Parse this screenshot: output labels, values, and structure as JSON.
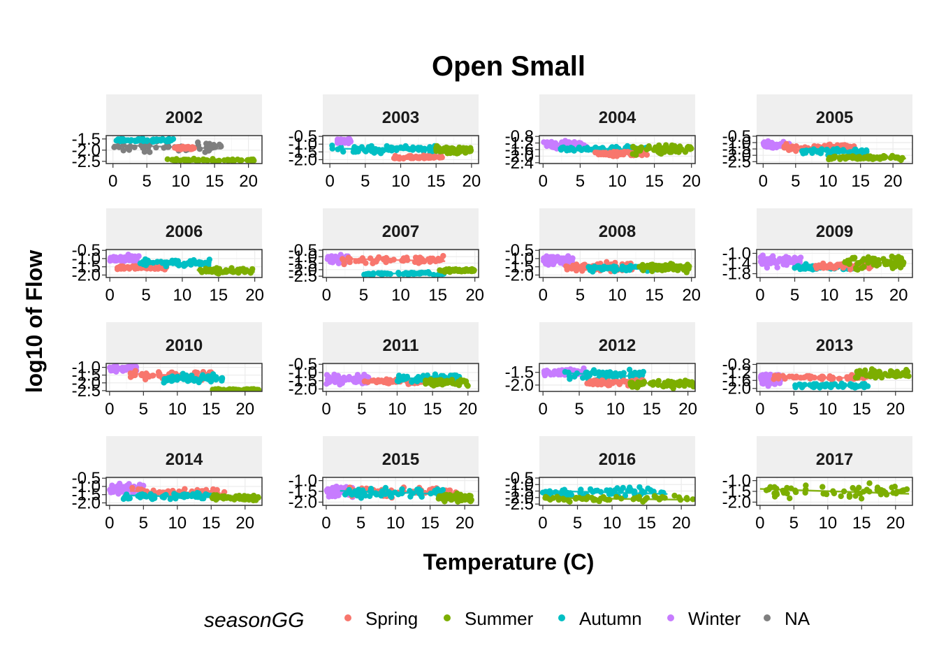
{
  "chart_data": {
    "type": "scatter",
    "title": "Open Small",
    "xlabel": "Temperature (C)",
    "ylabel": "log10 of Flow",
    "grid": true,
    "legend": {
      "title": "seasonGG",
      "placement": "bottom",
      "items": [
        {
          "name": "Spring",
          "color": "#F8766D"
        },
        {
          "name": "Summer",
          "color": "#7CAE00"
        },
        {
          "name": "Autumn",
          "color": "#00BFC4"
        },
        {
          "name": "Winter",
          "color": "#C77CFF"
        },
        {
          "name": "NA",
          "color": "#7F7F7F"
        }
      ]
    },
    "facets": [
      {
        "label": "2002",
        "xlim": [
          -1,
          22
        ],
        "ylim": [
          -2.6,
          -1.35
        ],
        "xticks": [
          0,
          5,
          10,
          15,
          20
        ],
        "yticks": [
          -1.5,
          -2.0,
          -2.5
        ],
        "groups": [
          {
            "season": "NA",
            "x_range": [
              0,
              16
            ],
            "y_center": -1.85,
            "y_spread": 0.35
          },
          {
            "season": "Autumn",
            "x_range": [
              0.5,
              9
            ],
            "y_center": -1.55,
            "y_spread": 0.1
          },
          {
            "season": "Summer",
            "x_range": [
              8,
              21
            ],
            "y_center": -2.45,
            "y_spread": 0.08
          },
          {
            "season": "Spring",
            "x_range": [
              9,
              12
            ],
            "y_center": -1.9,
            "y_spread": 0.1
          }
        ]
      },
      {
        "label": "2003",
        "xlim": [
          -1,
          21
        ],
        "ylim": [
          -2.25,
          -0.45
        ],
        "xticks": [
          0,
          5,
          10,
          15,
          20
        ],
        "yticks": [
          -0.5,
          -1.0,
          -1.5,
          -2.0
        ],
        "groups": [
          {
            "season": "Autumn",
            "x_range": [
              0,
              15
            ],
            "y_center": -1.35,
            "y_spread": 0.3
          },
          {
            "season": "Winter",
            "x_range": [
              1,
              3
            ],
            "y_center": -0.8,
            "y_spread": 0.2
          },
          {
            "season": "Spring",
            "x_range": [
              9,
              16
            ],
            "y_center": -1.85,
            "y_spread": 0.15
          },
          {
            "season": "Summer",
            "x_range": [
              15,
              20
            ],
            "y_center": -1.4,
            "y_spread": 0.3
          }
        ]
      },
      {
        "label": "2004",
        "xlim": [
          -0.5,
          20.5
        ],
        "ylim": [
          -2.45,
          -0.75
        ],
        "xticks": [
          0,
          5,
          10,
          15,
          20
        ],
        "yticks": [
          -0.8,
          -1.2,
          -1.6,
          -2.0,
          -2.4
        ],
        "groups": [
          {
            "season": "Winter",
            "x_range": [
              0,
              6
            ],
            "y_center": -1.3,
            "y_spread": 0.3
          },
          {
            "season": "Autumn",
            "x_range": [
              2,
              14
            ],
            "y_center": -1.55,
            "y_spread": 0.2
          },
          {
            "season": "Spring",
            "x_range": [
              7,
              14
            ],
            "y_center": -1.85,
            "y_spread": 0.2
          },
          {
            "season": "Summer",
            "x_range": [
              12,
              20
            ],
            "y_center": -1.6,
            "y_spread": 0.4
          }
        ]
      },
      {
        "label": "2005",
        "xlim": [
          -1,
          23
        ],
        "ylim": [
          -2.65,
          -0.45
        ],
        "xticks": [
          0,
          5,
          10,
          15,
          20
        ],
        "yticks": [
          -0.5,
          -1.0,
          -1.5,
          -2.0,
          -2.5
        ],
        "groups": [
          {
            "season": "Winter",
            "x_range": [
              0,
              4
            ],
            "y_center": -1.2,
            "y_spread": 0.35
          },
          {
            "season": "Spring",
            "x_range": [
              3,
              14
            ],
            "y_center": -1.4,
            "y_spread": 0.4
          },
          {
            "season": "Autumn",
            "x_range": [
              6,
              16
            ],
            "y_center": -1.7,
            "y_spread": 0.35
          },
          {
            "season": "Summer",
            "x_range": [
              10,
              22
            ],
            "y_center": -2.2,
            "y_spread": 0.2
          }
        ]
      },
      {
        "label": "2006",
        "xlim": [
          -0.5,
          21
        ],
        "ylim": [
          -2.15,
          -0.45
        ],
        "xticks": [
          0,
          5,
          10,
          15,
          20
        ],
        "yticks": [
          -0.5,
          -1.0,
          -1.5,
          -2.0
        ],
        "groups": [
          {
            "season": "Winter",
            "x_range": [
              0,
              4
            ],
            "y_center": -1.0,
            "y_spread": 0.35
          },
          {
            "season": "Spring",
            "x_range": [
              1,
              8
            ],
            "y_center": -1.55,
            "y_spread": 0.15
          },
          {
            "season": "Autumn",
            "x_range": [
              4,
              14
            ],
            "y_center": -1.25,
            "y_spread": 0.3
          },
          {
            "season": "Summer",
            "x_range": [
              12,
              20
            ],
            "y_center": -1.75,
            "y_spread": 0.2
          }
        ]
      },
      {
        "label": "2007",
        "xlim": [
          -0.5,
          20.5
        ],
        "ylim": [
          -2.6,
          -0.45
        ],
        "xticks": [
          0,
          5,
          10,
          15,
          20
        ],
        "yticks": [
          -0.5,
          -1.0,
          -1.5,
          -2.0,
          -2.5
        ],
        "groups": [
          {
            "season": "Winter",
            "x_range": [
              0,
              3
            ],
            "y_center": -1.2,
            "y_spread": 0.4
          },
          {
            "season": "Spring",
            "x_range": [
              2,
              16
            ],
            "y_center": -1.25,
            "y_spread": 0.4
          },
          {
            "season": "Autumn",
            "x_range": [
              5,
              16
            ],
            "y_center": -2.3,
            "y_spread": 0.15
          },
          {
            "season": "Summer",
            "x_range": [
              15,
              20
            ],
            "y_center": -2.05,
            "y_spread": 0.15
          }
        ]
      },
      {
        "label": "2008",
        "xlim": [
          -0.5,
          20.5
        ],
        "ylim": [
          -2.15,
          -0.45
        ],
        "xticks": [
          0,
          5,
          10,
          15,
          20
        ],
        "yticks": [
          -0.5,
          -1.0,
          -1.5,
          -2.0
        ],
        "groups": [
          {
            "season": "Winter",
            "x_range": [
              0,
              4
            ],
            "y_center": -1.1,
            "y_spread": 0.4
          },
          {
            "season": "Spring",
            "x_range": [
              3,
              12
            ],
            "y_center": -1.5,
            "y_spread": 0.35
          },
          {
            "season": "Autumn",
            "x_range": [
              6,
              16
            ],
            "y_center": -1.6,
            "y_spread": 0.25
          },
          {
            "season": "Summer",
            "x_range": [
              13,
              20
            ],
            "y_center": -1.55,
            "y_spread": 0.35
          }
        ]
      },
      {
        "label": "2009",
        "xlim": [
          -0.5,
          22
        ],
        "ylim": [
          -1.95,
          -0.85
        ],
        "xticks": [
          0,
          5,
          10,
          15,
          20
        ],
        "yticks": [
          -1.0,
          -1.4,
          -1.8
        ],
        "groups": [
          {
            "season": "Winter",
            "x_range": [
              0,
              6
            ],
            "y_center": -1.3,
            "y_spread": 0.3
          },
          {
            "season": "Autumn",
            "x_range": [
              5,
              14
            ],
            "y_center": -1.55,
            "y_spread": 0.15
          },
          {
            "season": "Spring",
            "x_range": [
              8,
              16
            ],
            "y_center": -1.5,
            "y_spread": 0.15
          },
          {
            "season": "Summer",
            "x_range": [
              12,
              21
            ],
            "y_center": -1.35,
            "y_spread": 0.35
          }
        ]
      },
      {
        "label": "2010",
        "xlim": [
          -0.5,
          22.5
        ],
        "ylim": [
          -2.55,
          -0.75
        ],
        "xticks": [
          0,
          5,
          10,
          15,
          20
        ],
        "yticks": [
          -1.0,
          -1.5,
          -2.0,
          -2.5
        ],
        "groups": [
          {
            "season": "Winter",
            "x_range": [
              0,
              4
            ],
            "y_center": -1.1,
            "y_spread": 0.3
          },
          {
            "season": "Spring",
            "x_range": [
              3,
              15
            ],
            "y_center": -1.5,
            "y_spread": 0.4
          },
          {
            "season": "Autumn",
            "x_range": [
              8,
              17
            ],
            "y_center": -1.7,
            "y_spread": 0.35
          },
          {
            "season": "Summer",
            "x_range": [
              15,
              22
            ],
            "y_center": -2.45,
            "y_spread": 0.08
          }
        ]
      },
      {
        "label": "2011",
        "xlim": [
          -0.5,
          21.5
        ],
        "ylim": [
          -2.15,
          -0.45
        ],
        "xticks": [
          0,
          5,
          10,
          15,
          20
        ],
        "yticks": [
          -0.5,
          -1.0,
          -1.5,
          -2.0
        ],
        "groups": [
          {
            "season": "Winter",
            "x_range": [
              0,
              6
            ],
            "y_center": -1.4,
            "y_spread": 0.5
          },
          {
            "season": "Spring",
            "x_range": [
              5,
              14
            ],
            "y_center": -1.55,
            "y_spread": 0.2
          },
          {
            "season": "Autumn",
            "x_range": [
              10,
              19
            ],
            "y_center": -1.4,
            "y_spread": 0.35
          },
          {
            "season": "Summer",
            "x_range": [
              14,
              20
            ],
            "y_center": -1.6,
            "y_spread": 0.3
          }
        ]
      },
      {
        "label": "2012",
        "xlim": [
          -0.5,
          21
        ],
        "ylim": [
          -2.25,
          -1.15
        ],
        "xticks": [
          0,
          5,
          10,
          15,
          20
        ],
        "yticks": [
          -1.5,
          -2.0
        ],
        "groups": [
          {
            "season": "Winter",
            "x_range": [
              0,
              6
            ],
            "y_center": -1.5,
            "y_spread": 0.2
          },
          {
            "season": "Autumn",
            "x_range": [
              3,
              14
            ],
            "y_center": -1.6,
            "y_spread": 0.3
          },
          {
            "season": "Spring",
            "x_range": [
              6,
              14
            ],
            "y_center": -1.9,
            "y_spread": 0.15
          },
          {
            "season": "Summer",
            "x_range": [
              12,
              21
            ],
            "y_center": -1.95,
            "y_spread": 0.2
          }
        ]
      },
      {
        "label": "2013",
        "xlim": [
          -0.5,
          22.5
        ],
        "ylim": [
          -2.15,
          -0.75
        ],
        "xticks": [
          0,
          5,
          10,
          15,
          20
        ],
        "yticks": [
          -0.8,
          -1.2,
          -1.6,
          -2.0
        ],
        "groups": [
          {
            "season": "Winter",
            "x_range": [
              0,
              3
            ],
            "y_center": -1.5,
            "y_spread": 0.4
          },
          {
            "season": "Spring",
            "x_range": [
              2,
              16
            ],
            "y_center": -1.45,
            "y_spread": 0.15
          },
          {
            "season": "Autumn",
            "x_range": [
              5,
              16
            ],
            "y_center": -1.85,
            "y_spread": 0.15
          },
          {
            "season": "Summer",
            "x_range": [
              14,
              22
            ],
            "y_center": -1.3,
            "y_spread": 0.35
          }
        ]
      },
      {
        "label": "2014",
        "xlim": [
          -0.5,
          22.5
        ],
        "ylim": [
          -2.15,
          -0.45
        ],
        "xticks": [
          0,
          5,
          10,
          15,
          20
        ],
        "yticks": [
          -0.5,
          -1.0,
          -1.5,
          -2.0
        ],
        "groups": [
          {
            "season": "Winter",
            "x_range": [
              0,
              5
            ],
            "y_center": -1.2,
            "y_spread": 0.5
          },
          {
            "season": "Spring",
            "x_range": [
              3,
              17
            ],
            "y_center": -1.35,
            "y_spread": 0.3
          },
          {
            "season": "Autumn",
            "x_range": [
              2,
              15
            ],
            "y_center": -1.6,
            "y_spread": 0.25
          },
          {
            "season": "Summer",
            "x_range": [
              15,
              22
            ],
            "y_center": -1.7,
            "y_spread": 0.25
          }
        ]
      },
      {
        "label": "2015",
        "xlim": [
          -0.5,
          22
        ],
        "ylim": [
          -2.15,
          -0.85
        ],
        "xticks": [
          0,
          5,
          10,
          15,
          20
        ],
        "yticks": [
          -1.0,
          -1.5,
          -2.0
        ],
        "groups": [
          {
            "season": "Winter",
            "x_range": [
              0,
              4
            ],
            "y_center": -1.5,
            "y_spread": 0.4
          },
          {
            "season": "Spring",
            "x_range": [
              3,
              19
            ],
            "y_center": -1.5,
            "y_spread": 0.35
          },
          {
            "season": "Autumn",
            "x_range": [
              2,
              17
            ],
            "y_center": -1.55,
            "y_spread": 0.3
          },
          {
            "season": "Summer",
            "x_range": [
              16,
              21
            ],
            "y_center": -1.8,
            "y_spread": 0.25
          }
        ]
      },
      {
        "label": "2016",
        "xlim": [
          -0.5,
          22
        ],
        "ylim": [
          -2.6,
          -0.45
        ],
        "xticks": [
          0,
          5,
          10,
          15,
          20
        ],
        "yticks": [
          -0.5,
          -1.0,
          -1.5,
          -2.0,
          -2.5
        ],
        "groups": [
          {
            "season": "Autumn",
            "x_range": [
              0,
              18
            ],
            "y_center": -1.6,
            "y_spread": 0.5
          },
          {
            "season": "Summer",
            "x_range": [
              0,
              22
            ],
            "y_center": -2.1,
            "y_spread": 0.3
          }
        ]
      },
      {
        "label": "2017",
        "xlim": [
          -0.5,
          22.5
        ],
        "ylim": [
          -2.15,
          -0.85
        ],
        "xticks": [
          0,
          5,
          10,
          15,
          20
        ],
        "yticks": [
          -1.0,
          -1.5,
          -2.0
        ],
        "groups": [
          {
            "season": "Summer",
            "x_range": [
              0,
              22
            ],
            "y_center": -1.5,
            "y_spread": 0.45
          }
        ]
      }
    ]
  }
}
